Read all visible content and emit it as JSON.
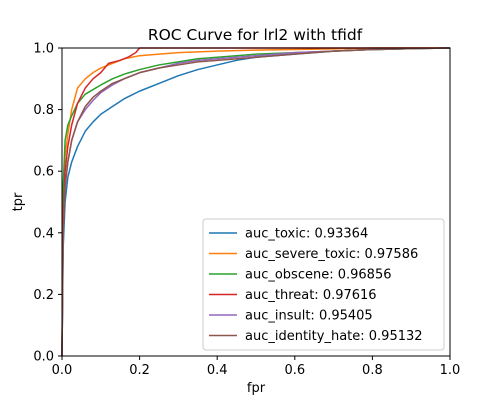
{
  "chart_data": {
    "type": "line",
    "title": "ROC Curve for lrl2 with tfidf",
    "xlabel": "fpr",
    "ylabel": "tpr",
    "xlim": [
      0.0,
      1.0
    ],
    "ylim": [
      0.0,
      1.0
    ],
    "xticks": [
      "0.0",
      "0.2",
      "0.4",
      "0.6",
      "0.8",
      "1.0"
    ],
    "yticks": [
      "0.0",
      "0.2",
      "0.4",
      "0.6",
      "0.8",
      "1.0"
    ],
    "grid": false,
    "legend_position": "lower right",
    "series": [
      {
        "name": "auc_toxic: 0.93364",
        "color": "#1f77b4",
        "points": [
          [
            0,
            0
          ],
          [
            0.003,
            0.35
          ],
          [
            0.008,
            0.5
          ],
          [
            0.015,
            0.58
          ],
          [
            0.025,
            0.63
          ],
          [
            0.04,
            0.68
          ],
          [
            0.06,
            0.73
          ],
          [
            0.08,
            0.76
          ],
          [
            0.1,
            0.785
          ],
          [
            0.13,
            0.81
          ],
          [
            0.16,
            0.835
          ],
          [
            0.2,
            0.86
          ],
          [
            0.25,
            0.885
          ],
          [
            0.3,
            0.91
          ],
          [
            0.35,
            0.93
          ],
          [
            0.4,
            0.945
          ],
          [
            0.45,
            0.96
          ],
          [
            0.5,
            0.97
          ],
          [
            0.6,
            0.98
          ],
          [
            0.7,
            0.99
          ],
          [
            0.8,
            0.995
          ],
          [
            0.9,
            0.998
          ],
          [
            1.0,
            1.0
          ]
        ]
      },
      {
        "name": "auc_severe_toxic: 0.97586",
        "color": "#ff7f0e",
        "points": [
          [
            0,
            0
          ],
          [
            0.003,
            0.5
          ],
          [
            0.008,
            0.65
          ],
          [
            0.015,
            0.72
          ],
          [
            0.025,
            0.8
          ],
          [
            0.04,
            0.87
          ],
          [
            0.06,
            0.9
          ],
          [
            0.08,
            0.92
          ],
          [
            0.1,
            0.935
          ],
          [
            0.13,
            0.95
          ],
          [
            0.16,
            0.965
          ],
          [
            0.2,
            0.975
          ],
          [
            0.25,
            0.98
          ],
          [
            0.3,
            0.985
          ],
          [
            0.4,
            0.99
          ],
          [
            0.5,
            0.993
          ],
          [
            0.6,
            0.995
          ],
          [
            0.7,
            0.997
          ],
          [
            0.8,
            1.0
          ],
          [
            1.0,
            1.0
          ]
        ]
      },
      {
        "name": "auc_obscene: 0.96856",
        "color": "#2ca02c",
        "points": [
          [
            0,
            0
          ],
          [
            0.003,
            0.55
          ],
          [
            0.008,
            0.7
          ],
          [
            0.015,
            0.75
          ],
          [
            0.025,
            0.78
          ],
          [
            0.04,
            0.82
          ],
          [
            0.06,
            0.85
          ],
          [
            0.08,
            0.865
          ],
          [
            0.1,
            0.88
          ],
          [
            0.13,
            0.9
          ],
          [
            0.16,
            0.915
          ],
          [
            0.2,
            0.93
          ],
          [
            0.25,
            0.945
          ],
          [
            0.3,
            0.955
          ],
          [
            0.35,
            0.965
          ],
          [
            0.4,
            0.97
          ],
          [
            0.5,
            0.98
          ],
          [
            0.6,
            0.985
          ],
          [
            0.7,
            0.99
          ],
          [
            0.8,
            0.995
          ],
          [
            0.9,
            0.998
          ],
          [
            1.0,
            1.0
          ]
        ]
      },
      {
        "name": "auc_threat: 0.97616",
        "color": "#d62728",
        "points": [
          [
            0,
            0
          ],
          [
            0.003,
            0.45
          ],
          [
            0.008,
            0.6
          ],
          [
            0.015,
            0.68
          ],
          [
            0.025,
            0.75
          ],
          [
            0.04,
            0.82
          ],
          [
            0.06,
            0.87
          ],
          [
            0.08,
            0.9
          ],
          [
            0.1,
            0.92
          ],
          [
            0.12,
            0.95
          ],
          [
            0.15,
            0.96
          ],
          [
            0.17,
            0.97
          ],
          [
            0.19,
            0.985
          ],
          [
            0.2,
            1.0
          ],
          [
            1.0,
            1.0
          ]
        ]
      },
      {
        "name": "auc_insult: 0.95405",
        "color": "#9467bd",
        "points": [
          [
            0,
            0
          ],
          [
            0.003,
            0.4
          ],
          [
            0.008,
            0.55
          ],
          [
            0.015,
            0.63
          ],
          [
            0.025,
            0.7
          ],
          [
            0.04,
            0.76
          ],
          [
            0.06,
            0.8
          ],
          [
            0.08,
            0.83
          ],
          [
            0.1,
            0.855
          ],
          [
            0.13,
            0.88
          ],
          [
            0.16,
            0.9
          ],
          [
            0.2,
            0.92
          ],
          [
            0.25,
            0.935
          ],
          [
            0.3,
            0.95
          ],
          [
            0.35,
            0.96
          ],
          [
            0.4,
            0.965
          ],
          [
            0.5,
            0.975
          ],
          [
            0.6,
            0.985
          ],
          [
            0.7,
            0.99
          ],
          [
            0.8,
            0.995
          ],
          [
            0.9,
            0.998
          ],
          [
            1.0,
            1.0
          ]
        ]
      },
      {
        "name": "auc_identity_hate: 0.95132",
        "color": "#8c564b",
        "points": [
          [
            0,
            0
          ],
          [
            0.003,
            0.4
          ],
          [
            0.008,
            0.55
          ],
          [
            0.015,
            0.63
          ],
          [
            0.025,
            0.7
          ],
          [
            0.04,
            0.76
          ],
          [
            0.06,
            0.81
          ],
          [
            0.08,
            0.84
          ],
          [
            0.1,
            0.86
          ],
          [
            0.13,
            0.885
          ],
          [
            0.16,
            0.9
          ],
          [
            0.2,
            0.92
          ],
          [
            0.25,
            0.935
          ],
          [
            0.3,
            0.945
          ],
          [
            0.35,
            0.955
          ],
          [
            0.4,
            0.96
          ],
          [
            0.5,
            0.97
          ],
          [
            0.6,
            0.98
          ],
          [
            0.7,
            0.99
          ],
          [
            0.8,
            0.995
          ],
          [
            0.9,
            0.998
          ],
          [
            1.0,
            1.0
          ]
        ]
      }
    ]
  }
}
